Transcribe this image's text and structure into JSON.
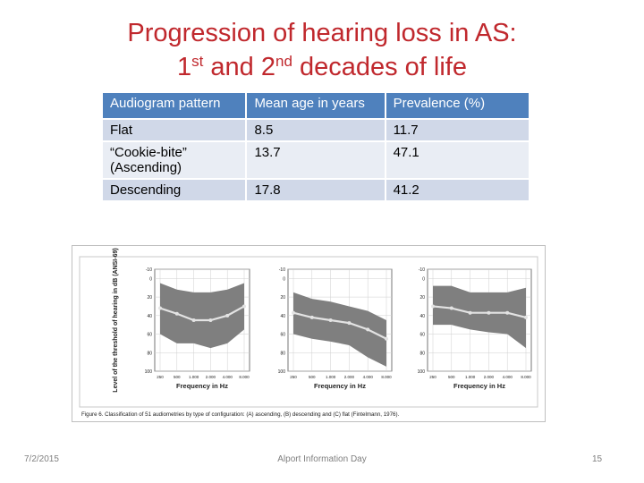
{
  "title": {
    "line1": "Progression of hearing loss in AS:",
    "line2_a": "1",
    "line2_sup1": "st",
    "line2_b": " and 2",
    "line2_sup2": "nd",
    "line2_c": " decades of life"
  },
  "table": {
    "headers": [
      "Audiogram pattern",
      "Mean age in years",
      "Prevalence (%)"
    ],
    "rows": [
      {
        "pattern": "Flat",
        "age": "8.5",
        "prevalence": "11.7"
      },
      {
        "pattern": "“Cookie-bite” (Ascending)",
        "age": "13.7",
        "prevalence": "47.1"
      },
      {
        "pattern": "Descending",
        "age": "17.8",
        "prevalence": "41.2"
      }
    ]
  },
  "figure": {
    "ylabel": "Level of the threshold of hearing in dB (ANSI-69)",
    "xlabel": "Frequency in Hz",
    "caption": "Figure 6. Classification of 51 audiometries by type of configuration: (A) ascending, (B) descending and (C) flat (Fintelmann, 1976).",
    "yticks": [
      "-10",
      "0",
      "20",
      "40",
      "60",
      "80",
      "100"
    ],
    "xticks": [
      "250",
      "500",
      "1.000",
      "2.000",
      "4.000",
      "8.000"
    ],
    "colors": {
      "band": "#7f7f7f",
      "line": "#e3e3e3"
    }
  },
  "chart_data": [
    {
      "type": "area",
      "title": "",
      "xlabel": "Frequency in Hz",
      "ylabel": "Level of the threshold of hearing in dB (ANSI-69)",
      "x": [
        250,
        500,
        1000,
        2000,
        4000,
        8000
      ],
      "ylim": [
        100,
        -10
      ],
      "series": [
        {
          "values": [
            32,
            38,
            45,
            45,
            40,
            30
          ]
        }
      ],
      "band_low": [
        60,
        70,
        70,
        75,
        70,
        55
      ],
      "band_high": [
        5,
        12,
        15,
        15,
        12,
        5
      ]
    },
    {
      "type": "area",
      "title": "",
      "xlabel": "Frequency in Hz",
      "ylabel": "",
      "x": [
        250,
        500,
        1000,
        2000,
        4000,
        8000
      ],
      "ylim": [
        100,
        -10
      ],
      "series": [
        {
          "values": [
            37,
            42,
            45,
            48,
            55,
            65
          ]
        }
      ],
      "band_low": [
        60,
        65,
        68,
        72,
        85,
        95
      ],
      "band_high": [
        15,
        22,
        25,
        30,
        35,
        45
      ]
    },
    {
      "type": "area",
      "title": "",
      "xlabel": "Frequency in Hz",
      "ylabel": "",
      "x": [
        250,
        500,
        1000,
        2000,
        4000,
        8000
      ],
      "ylim": [
        100,
        -10
      ],
      "series": [
        {
          "values": [
            30,
            32,
            37,
            37,
            37,
            42
          ]
        }
      ],
      "band_low": [
        50,
        50,
        55,
        58,
        60,
        75
      ],
      "band_high": [
        8,
        8,
        15,
        15,
        15,
        10
      ]
    }
  ],
  "footer": {
    "date": "7/2/2015",
    "center": "Alport Information Day",
    "page": "15"
  }
}
